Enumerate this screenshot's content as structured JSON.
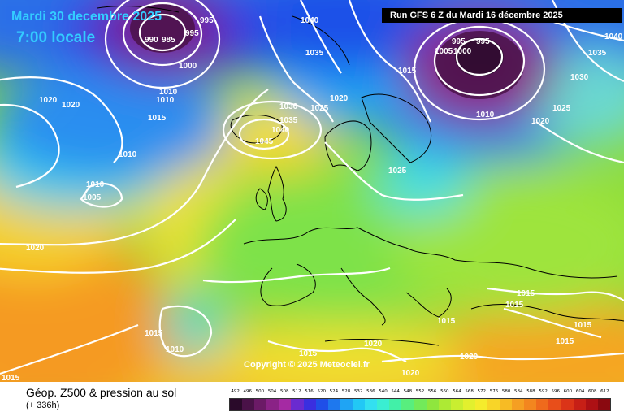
{
  "header": {
    "valid_date": "Mardi 30 decembre 2025",
    "valid_time": "7:00 locale",
    "run_info": "Run GFS 6 Z du Mardi 16 décembre 2025"
  },
  "footer": {
    "product_title": "Géop. Z500 & pression au sol",
    "lead_time": "(+ 336h)",
    "copyright": "Copyright © 2025 Meteociel.fr"
  },
  "isobar_labels": [
    "995",
    "1040",
    "995",
    "990",
    "985",
    "995",
    "1000",
    "1040",
    "1035",
    "1005",
    "1000",
    "995",
    "1015",
    "1035",
    "1030",
    "1025",
    "1020",
    "1010",
    "1030",
    "1025",
    "1020",
    "1010",
    "1020",
    "1015",
    "1010",
    "1035",
    "1040",
    "1045",
    "1010",
    "1025",
    "1010",
    "1005",
    "1020",
    "1020",
    "1015",
    "1015",
    "1015",
    "1010",
    "1015",
    "1015",
    "1020",
    "1020",
    "1020",
    "1015",
    "1015",
    "1015"
  ],
  "colors": {
    "high_z500": "#f5a623",
    "mid_z500": "#8ddc3a",
    "low_z500": "#7a1f7a",
    "isobar": "#ffffff",
    "coastline": "#000000",
    "title_accent": "#33ccff"
  },
  "scale": {
    "ticks": [
      "492",
      "496",
      "500",
      "504",
      "508",
      "512",
      "516",
      "520",
      "524",
      "528",
      "532",
      "536",
      "540",
      "544",
      "548",
      "552",
      "556",
      "560",
      "564",
      "568",
      "572",
      "576",
      "580",
      "584",
      "588",
      "592",
      "596",
      "600",
      "604",
      "608",
      "612"
    ],
    "colors": [
      "#2a0a2a",
      "#4a1248",
      "#6b1a66",
      "#8a2286",
      "#a52aa3",
      "#6a2bd0",
      "#3a2fe0",
      "#1f4fe8",
      "#1e78ee",
      "#1fa4f4",
      "#22c8f5",
      "#33e0f0",
      "#3aeed2",
      "#42f0a8",
      "#58ee7e",
      "#72ea5a",
      "#8fe63e",
      "#adea34",
      "#c9ee30",
      "#e2f02e",
      "#f5ec2c",
      "#f8d528",
      "#f7bb24",
      "#f59f22",
      "#f3861f",
      "#ef6a1c",
      "#e84e1a",
      "#db3418",
      "#c71f16",
      "#ad1014",
      "#8a0910"
    ]
  }
}
